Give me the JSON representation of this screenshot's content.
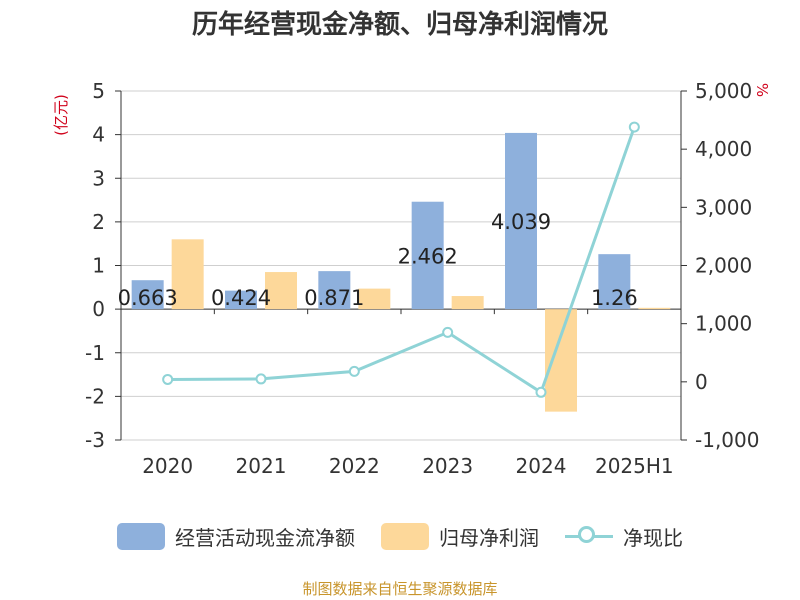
{
  "chart_data": {
    "type": "bar",
    "title": "历年经营现金净额、归母净利润情况",
    "categories": [
      "2020",
      "2021",
      "2022",
      "2023",
      "2024",
      "2025H1"
    ],
    "series": [
      {
        "name": "经营活动现金流净额",
        "type": "bar",
        "axis": "left",
        "color": "#8eb0dc",
        "values": [
          0.663,
          0.424,
          0.871,
          2.462,
          4.039,
          1.26
        ],
        "labels": [
          "0.663",
          "0.424",
          "0.871",
          "2.462",
          "4.039",
          "1.26"
        ]
      },
      {
        "name": "归母净利润",
        "type": "bar",
        "axis": "left",
        "color": "#fdd89a",
        "values": [
          1.6,
          0.85,
          0.47,
          0.3,
          -2.35,
          0.03
        ]
      },
      {
        "name": "净现比",
        "type": "line",
        "axis": "right",
        "color": "#8fd3d6",
        "values": [
          41,
          50,
          180,
          850,
          -180,
          4380
        ]
      }
    ],
    "left_axis": {
      "unit": "(亿元)",
      "ylim": [
        -3,
        5
      ],
      "ticks": [
        -3,
        -2,
        -1,
        0,
        1,
        2,
        3,
        4,
        5
      ],
      "tick_labels": [
        "-3",
        "-2",
        "-1",
        "0",
        "1",
        "2",
        "3",
        "4",
        "5"
      ]
    },
    "right_axis": {
      "unit": "%",
      "ylim": [
        -1000,
        5000
      ],
      "ticks": [
        -1000,
        0,
        1000,
        2000,
        3000,
        4000,
        5000
      ],
      "tick_labels": [
        "-1,000",
        "0",
        "1,000",
        "2,000",
        "3,000",
        "4,000",
        "5,000"
      ]
    },
    "grid": true,
    "legend_position": "bottom"
  },
  "source_note": "制图数据来自恒生聚源数据库"
}
